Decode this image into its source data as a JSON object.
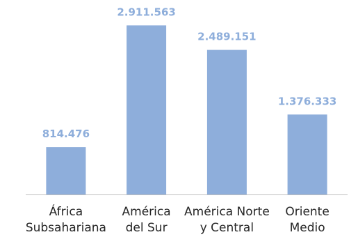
{
  "chart_data": {
    "type": "bar",
    "title": "",
    "xlabel": "",
    "ylabel": "",
    "categories": [
      [
        "África",
        "Subsahariana"
      ],
      [
        "América",
        "del Sur"
      ],
      [
        "América Norte",
        "y Central"
      ],
      [
        "Oriente",
        "Medio"
      ]
    ],
    "values": [
      814476,
      2911563,
      2489151,
      1376333
    ],
    "value_labels": [
      "814.476",
      "2.911.563",
      "2.489.151",
      "1.376.333"
    ],
    "ylim": [
      0,
      3000000
    ],
    "grid": false,
    "legend": "none",
    "colors": {
      "bar": "#8eaedb",
      "value_label": "#8eaedb",
      "axis": "#bfbfbf",
      "tick_label": "#262626"
    }
  }
}
